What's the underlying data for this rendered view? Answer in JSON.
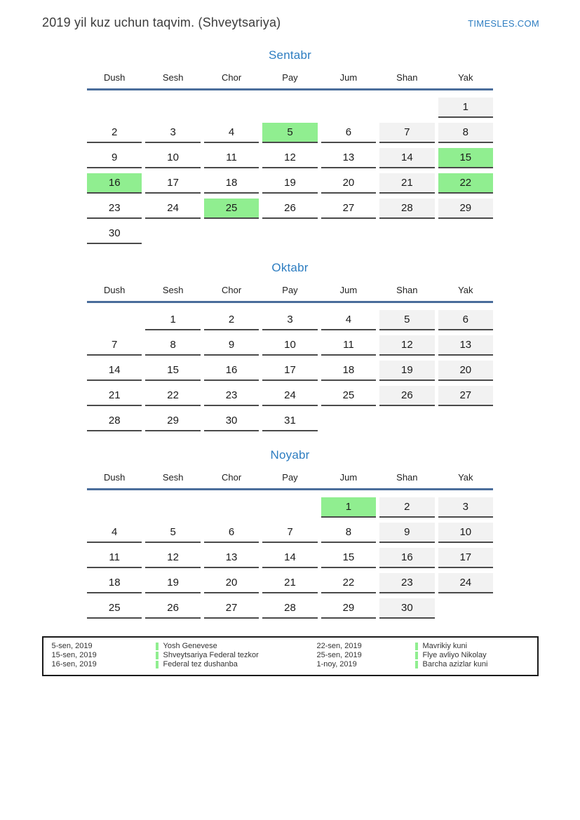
{
  "page": {
    "title": "2019 yil kuz uchun taqvim. (Shveytsariya)",
    "site": "TIMESLES.COM"
  },
  "colors": {
    "accent_blue": "#2d7dc1",
    "header_line_blue": "#4a6d9b",
    "holiday_green": "#90ee90",
    "weekend_gray": "#f2f2f2",
    "cell_border": "#4a4a4a"
  },
  "day_headers": [
    "Dush",
    "Sesh",
    "Chor",
    "Pay",
    "Jum",
    "Shan",
    "Yak"
  ],
  "months": [
    {
      "name": "Sentabr",
      "weeks": [
        [
          {
            "d": "",
            "t": "empty"
          },
          {
            "d": "",
            "t": "empty"
          },
          {
            "d": "",
            "t": "empty"
          },
          {
            "d": "",
            "t": "empty"
          },
          {
            "d": "",
            "t": "empty"
          },
          {
            "d": "",
            "t": "empty"
          },
          {
            "d": "1",
            "t": "weekend"
          }
        ],
        [
          {
            "d": "2",
            "t": "day"
          },
          {
            "d": "3",
            "t": "day"
          },
          {
            "d": "4",
            "t": "day"
          },
          {
            "d": "5",
            "t": "holiday"
          },
          {
            "d": "6",
            "t": "day"
          },
          {
            "d": "7",
            "t": "weekend"
          },
          {
            "d": "8",
            "t": "weekend"
          }
        ],
        [
          {
            "d": "9",
            "t": "day"
          },
          {
            "d": "10",
            "t": "day"
          },
          {
            "d": "11",
            "t": "day"
          },
          {
            "d": "12",
            "t": "day"
          },
          {
            "d": "13",
            "t": "day"
          },
          {
            "d": "14",
            "t": "weekend"
          },
          {
            "d": "15",
            "t": "holiday"
          }
        ],
        [
          {
            "d": "16",
            "t": "holiday"
          },
          {
            "d": "17",
            "t": "day"
          },
          {
            "d": "18",
            "t": "day"
          },
          {
            "d": "19",
            "t": "day"
          },
          {
            "d": "20",
            "t": "day"
          },
          {
            "d": "21",
            "t": "weekend"
          },
          {
            "d": "22",
            "t": "holiday"
          }
        ],
        [
          {
            "d": "23",
            "t": "day"
          },
          {
            "d": "24",
            "t": "day"
          },
          {
            "d": "25",
            "t": "holiday"
          },
          {
            "d": "26",
            "t": "day"
          },
          {
            "d": "27",
            "t": "day"
          },
          {
            "d": "28",
            "t": "weekend"
          },
          {
            "d": "29",
            "t": "weekend"
          }
        ],
        [
          {
            "d": "30",
            "t": "day"
          },
          {
            "d": "",
            "t": "empty"
          },
          {
            "d": "",
            "t": "empty"
          },
          {
            "d": "",
            "t": "empty"
          },
          {
            "d": "",
            "t": "empty"
          },
          {
            "d": "",
            "t": "empty"
          },
          {
            "d": "",
            "t": "empty"
          }
        ]
      ]
    },
    {
      "name": "Oktabr",
      "weeks": [
        [
          {
            "d": "",
            "t": "empty"
          },
          {
            "d": "1",
            "t": "day"
          },
          {
            "d": "2",
            "t": "day"
          },
          {
            "d": "3",
            "t": "day"
          },
          {
            "d": "4",
            "t": "day"
          },
          {
            "d": "5",
            "t": "weekend"
          },
          {
            "d": "6",
            "t": "weekend"
          }
        ],
        [
          {
            "d": "7",
            "t": "day"
          },
          {
            "d": "8",
            "t": "day"
          },
          {
            "d": "9",
            "t": "day"
          },
          {
            "d": "10",
            "t": "day"
          },
          {
            "d": "11",
            "t": "day"
          },
          {
            "d": "12",
            "t": "weekend"
          },
          {
            "d": "13",
            "t": "weekend"
          }
        ],
        [
          {
            "d": "14",
            "t": "day"
          },
          {
            "d": "15",
            "t": "day"
          },
          {
            "d": "16",
            "t": "day"
          },
          {
            "d": "17",
            "t": "day"
          },
          {
            "d": "18",
            "t": "day"
          },
          {
            "d": "19",
            "t": "weekend"
          },
          {
            "d": "20",
            "t": "weekend"
          }
        ],
        [
          {
            "d": "21",
            "t": "day"
          },
          {
            "d": "22",
            "t": "day"
          },
          {
            "d": "23",
            "t": "day"
          },
          {
            "d": "24",
            "t": "day"
          },
          {
            "d": "25",
            "t": "day"
          },
          {
            "d": "26",
            "t": "weekend"
          },
          {
            "d": "27",
            "t": "weekend"
          }
        ],
        [
          {
            "d": "28",
            "t": "day"
          },
          {
            "d": "29",
            "t": "day"
          },
          {
            "d": "30",
            "t": "day"
          },
          {
            "d": "31",
            "t": "day"
          },
          {
            "d": "",
            "t": "empty"
          },
          {
            "d": "",
            "t": "empty"
          },
          {
            "d": "",
            "t": "empty"
          }
        ]
      ]
    },
    {
      "name": "Noyabr",
      "weeks": [
        [
          {
            "d": "",
            "t": "empty"
          },
          {
            "d": "",
            "t": "empty"
          },
          {
            "d": "",
            "t": "empty"
          },
          {
            "d": "",
            "t": "empty"
          },
          {
            "d": "1",
            "t": "holiday"
          },
          {
            "d": "2",
            "t": "weekend"
          },
          {
            "d": "3",
            "t": "weekend"
          }
        ],
        [
          {
            "d": "4",
            "t": "day"
          },
          {
            "d": "5",
            "t": "day"
          },
          {
            "d": "6",
            "t": "day"
          },
          {
            "d": "7",
            "t": "day"
          },
          {
            "d": "8",
            "t": "day"
          },
          {
            "d": "9",
            "t": "weekend"
          },
          {
            "d": "10",
            "t": "weekend"
          }
        ],
        [
          {
            "d": "11",
            "t": "day"
          },
          {
            "d": "12",
            "t": "day"
          },
          {
            "d": "13",
            "t": "day"
          },
          {
            "d": "14",
            "t": "day"
          },
          {
            "d": "15",
            "t": "day"
          },
          {
            "d": "16",
            "t": "weekend"
          },
          {
            "d": "17",
            "t": "weekend"
          }
        ],
        [
          {
            "d": "18",
            "t": "day"
          },
          {
            "d": "19",
            "t": "day"
          },
          {
            "d": "20",
            "t": "day"
          },
          {
            "d": "21",
            "t": "day"
          },
          {
            "d": "22",
            "t": "day"
          },
          {
            "d": "23",
            "t": "weekend"
          },
          {
            "d": "24",
            "t": "weekend"
          }
        ],
        [
          {
            "d": "25",
            "t": "day"
          },
          {
            "d": "26",
            "t": "day"
          },
          {
            "d": "27",
            "t": "day"
          },
          {
            "d": "28",
            "t": "day"
          },
          {
            "d": "29",
            "t": "day"
          },
          {
            "d": "30",
            "t": "weekend"
          },
          {
            "d": "",
            "t": "empty"
          }
        ]
      ]
    }
  ],
  "legend": {
    "columns": [
      {
        "items": [
          {
            "date": "5-sen, 2019",
            "name": "Yosh Genevese"
          },
          {
            "date": "15-sen, 2019",
            "name": "Shveytsariya Federal tezkor"
          },
          {
            "date": "16-sen, 2019",
            "name": "Federal tez dushanba"
          }
        ]
      },
      {
        "items": [
          {
            "date": "22-sen, 2019",
            "name": "Mavrikiy kuni"
          },
          {
            "date": "25-sen, 2019",
            "name": "Flye avliyo Nikolay"
          },
          {
            "date": "1-noy, 2019",
            "name": "Barcha azizlar kuni"
          }
        ]
      }
    ]
  }
}
